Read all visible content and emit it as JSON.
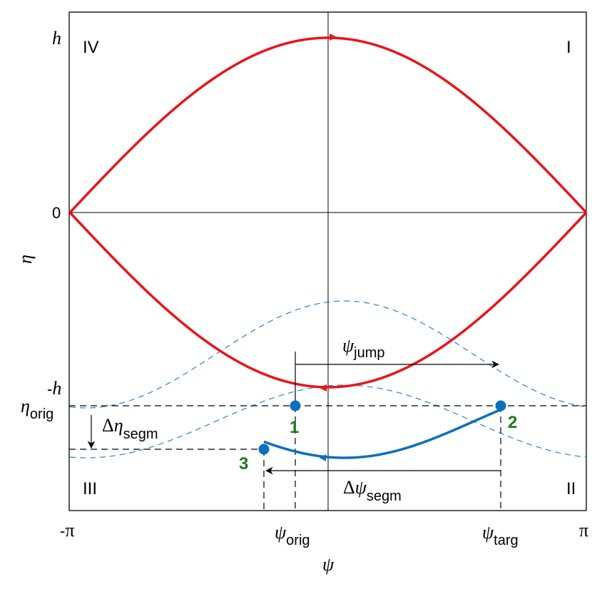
{
  "axes": {
    "ylabel": "η",
    "xlabel": "ψ",
    "yticks": {
      "top": "h",
      "zero": "0",
      "bottom_prefix": "-",
      "bottom": "h"
    },
    "xticks": {
      "left_prefix": "-",
      "left": "π",
      "right": "π"
    }
  },
  "quadrants": {
    "q1": "I",
    "q2": "II",
    "q3": "III",
    "q4": "IV"
  },
  "annotations": {
    "eta_orig": {
      "symbol": "η",
      "sub": "orig"
    },
    "delta_eta": {
      "prefix": "Δ",
      "symbol": "η",
      "sub": "segm"
    },
    "psi_jump": {
      "symbol": "ψ",
      "sub": "jump"
    },
    "delta_psi": {
      "prefix": "Δ",
      "symbol": "ψ",
      "sub": "segm"
    },
    "psi_orig": {
      "symbol": "ψ",
      "sub": "orig"
    },
    "psi_targ": {
      "symbol": "ψ",
      "sub": "targ"
    }
  },
  "points": {
    "p1": "1",
    "p2": "2",
    "p3": "3"
  },
  "colors": {
    "separatrix": "#e8141b",
    "trajectory": "#0a6fbd",
    "dashed": "#2a82c9",
    "label_green": "#1a7a1a"
  }
}
